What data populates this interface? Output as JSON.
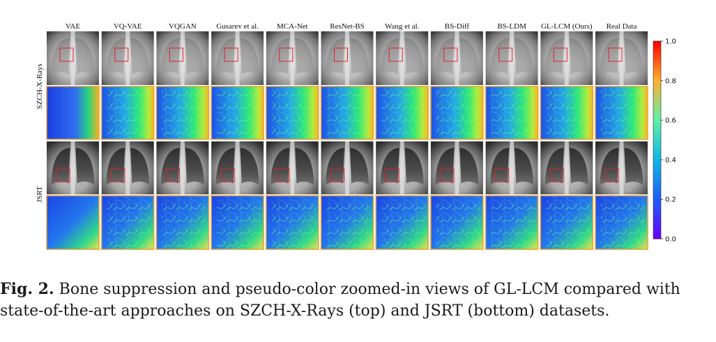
{
  "figure": {
    "methods": [
      "VAE",
      "VQ-VAE",
      "VQGAN",
      "Gusarev et al.",
      "MCA-Net",
      "ResNet-BS",
      "Wang et al.",
      "BS-Diff",
      "BS-LDM",
      "GL-LCM (Ours)",
      "Real Data"
    ],
    "datasets": [
      "SZCH-X-Rays",
      "JSRT"
    ],
    "colorbar_ticks": [
      "1.0",
      "0.8",
      "0.6",
      "0.4",
      "0.2",
      "0.0"
    ],
    "colormap": "rainbow",
    "roi_box_color": "#e0202a",
    "zoom_border_color": "#e8a33a"
  },
  "caption": {
    "label": "Fig. 2.",
    "line1": "Bone suppression and pseudo-color zoomed-in views of GL-LCM compared with",
    "line2": "state-of-the-art approaches on SZCH-X-Rays (top) and JSRT (bottom) datasets."
  }
}
